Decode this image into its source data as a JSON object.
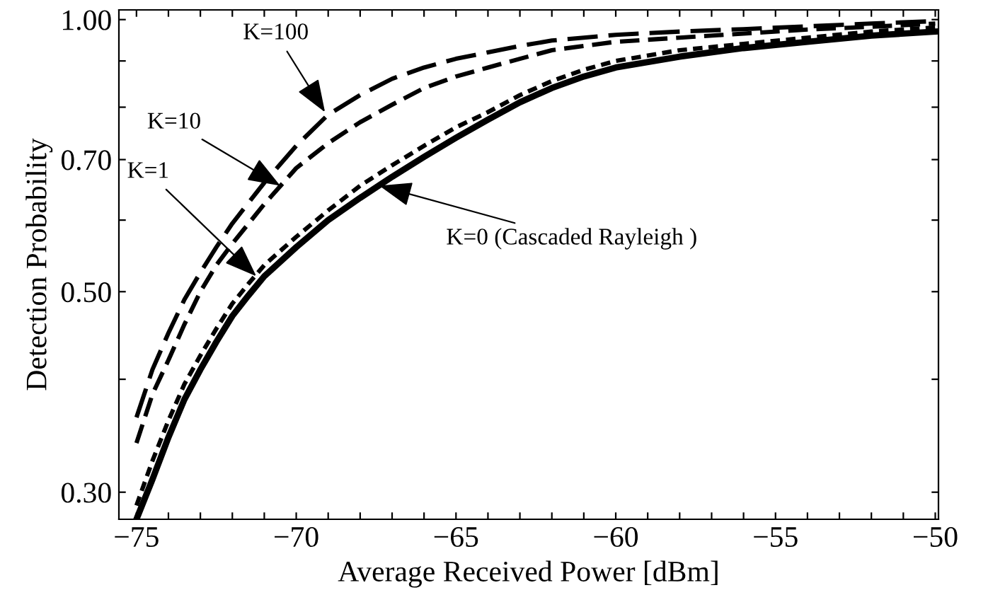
{
  "chart_data": {
    "type": "line",
    "xlabel": "Average Received Power [dBm]",
    "ylabel": "Detection Probability",
    "log": "y",
    "xlim": [
      -75.55,
      -49.9
    ],
    "ylim": [
      0.28,
      1.025
    ],
    "xticks": [
      {
        "value": -75,
        "label": "−75"
      },
      {
        "value": -74,
        "label": null
      },
      {
        "value": -73,
        "label": null
      },
      {
        "value": -72,
        "label": null
      },
      {
        "value": -71,
        "label": null
      },
      {
        "value": -70,
        "label": "−70"
      },
      {
        "value": -69,
        "label": null
      },
      {
        "value": -68,
        "label": null
      },
      {
        "value": -67,
        "label": null
      },
      {
        "value": -66,
        "label": null
      },
      {
        "value": -65,
        "label": "−65"
      },
      {
        "value": -64,
        "label": null
      },
      {
        "value": -63,
        "label": null
      },
      {
        "value": -62,
        "label": null
      },
      {
        "value": -61,
        "label": null
      },
      {
        "value": -60,
        "label": "−60"
      },
      {
        "value": -59,
        "label": null
      },
      {
        "value": -58,
        "label": null
      },
      {
        "value": -57,
        "label": null
      },
      {
        "value": -56,
        "label": null
      },
      {
        "value": -55,
        "label": "−55"
      },
      {
        "value": -54,
        "label": null
      },
      {
        "value": -53,
        "label": null
      },
      {
        "value": -52,
        "label": null
      },
      {
        "value": -51,
        "label": null
      },
      {
        "value": -50,
        "label": "−50"
      }
    ],
    "yticks": [
      {
        "value": 0.3,
        "label": "0.30"
      },
      {
        "value": 0.4,
        "label": null
      },
      {
        "value": 0.5,
        "label": "0.50"
      },
      {
        "value": 0.6,
        "label": null
      },
      {
        "value": 0.7,
        "label": "0.70"
      },
      {
        "value": 0.8,
        "label": null
      },
      {
        "value": 0.9,
        "label": null
      },
      {
        "value": 1.0,
        "label": "1.00"
      }
    ],
    "grid": false,
    "legend": false,
    "marker": "none",
    "series": [
      {
        "color": "#000000",
        "line_style": "solid",
        "x": [
          -75,
          -74.5,
          -74,
          -73.5,
          -73,
          -72.5,
          -72,
          -71.5,
          -71,
          -70,
          -69,
          -68,
          -67,
          -66,
          -65,
          -64,
          -63,
          -62,
          -61,
          -60,
          -58,
          -56,
          -54,
          -52,
          -50
        ],
        "values": [
          0.28,
          0.31,
          0.345,
          0.38,
          0.41,
          0.44,
          0.47,
          0.495,
          0.52,
          0.56,
          0.6,
          0.635,
          0.67,
          0.705,
          0.74,
          0.775,
          0.81,
          0.84,
          0.865,
          0.885,
          0.91,
          0.93,
          0.945,
          0.96,
          0.97
        ]
      },
      {
        "color": "#000000",
        "line_style": "dashed",
        "x": [
          -75,
          -74.5,
          -74,
          -73.5,
          -73,
          -72.5,
          -72,
          -71.5,
          -71,
          -70,
          -69,
          -68,
          -67,
          -66,
          -65,
          -64,
          -63,
          -62,
          -61,
          -60,
          -58,
          -56,
          -54,
          -52,
          -50
        ],
        "values": [
          0.29,
          0.325,
          0.36,
          0.395,
          0.425,
          0.455,
          0.485,
          0.51,
          0.535,
          0.575,
          0.615,
          0.655,
          0.69,
          0.725,
          0.76,
          0.79,
          0.825,
          0.855,
          0.88,
          0.9,
          0.925,
          0.94,
          0.955,
          0.97,
          0.98
        ]
      },
      {
        "color": "#000000",
        "line_style": "dashed",
        "x": [
          -75,
          -74.5,
          -74,
          -73.5,
          -73,
          -72.5,
          -72,
          -71,
          -70,
          -69,
          -68,
          -67,
          -66,
          -65,
          -64,
          -63,
          -62,
          -61,
          -60,
          -58,
          -56,
          -54,
          -52,
          -50
        ],
        "values": [
          0.34,
          0.385,
          0.42,
          0.46,
          0.5,
          0.535,
          0.565,
          0.625,
          0.685,
          0.73,
          0.77,
          0.805,
          0.84,
          0.865,
          0.885,
          0.905,
          0.925,
          0.935,
          0.945,
          0.955,
          0.965,
          0.975,
          0.982,
          0.99
        ]
      },
      {
        "color": "#000000",
        "line_style": "dashed",
        "x": [
          -75,
          -74.5,
          -74,
          -73.5,
          -73,
          -72.5,
          -72,
          -71,
          -70,
          -69,
          -68,
          -67,
          -66,
          -65,
          -64,
          -63,
          -62,
          -61,
          -60,
          -58,
          -56,
          -54,
          -52,
          -50
        ],
        "values": [
          0.363,
          0.41,
          0.45,
          0.49,
          0.525,
          0.56,
          0.595,
          0.66,
          0.725,
          0.785,
          0.825,
          0.86,
          0.885,
          0.905,
          0.92,
          0.935,
          0.948,
          0.955,
          0.962,
          0.97,
          0.976,
          0.983,
          0.99,
          0.996
        ]
      }
    ],
    "annotations": [
      {
        "text": "K=100",
        "x": -69.1,
        "y": 0.79
      },
      {
        "text": "K=10",
        "x": -70.5,
        "y": 0.655
      },
      {
        "text": "K=1",
        "x": -71.25,
        "y": 0.52
      },
      {
        "text": "K=0 (Cascaded Rayleigh )",
        "x": -67.4,
        "y": 0.655
      }
    ]
  }
}
